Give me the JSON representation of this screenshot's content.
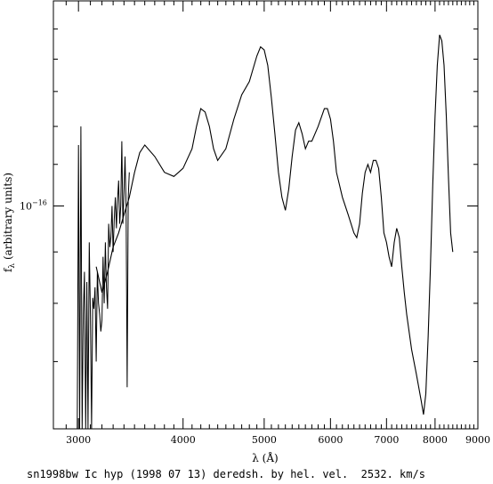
{
  "chart_data": {
    "type": "line",
    "x_scale": "log",
    "y_scale": "log",
    "xlim": [
      2800,
      9000
    ],
    "ylim": [
      6e-17,
      1.6e-16
    ],
    "x_ticks": [
      3000,
      4000,
      5000,
      6000,
      7000,
      8000,
      9000
    ],
    "x_tick_labels": [
      "3000",
      "4000",
      "5000",
      "6000",
      "7000",
      "8000",
      "9000"
    ],
    "y_tick_label_value": 1e-16,
    "y_tick_label_base": "10",
    "y_tick_label_exp": "−16",
    "xlabel": "λ (Å)",
    "ylabel_main": "f",
    "ylabel_sub": "λ",
    "ylabel_rest": " (arbitrary units)",
    "grid": false,
    "title": "",
    "series": [
      {
        "name": "",
        "color": "#000000",
        "x": [
          3150,
          3200,
          3250,
          3300,
          3350,
          3400,
          3450,
          3500,
          3550,
          3600,
          3700,
          3800,
          3900,
          4000,
          4100,
          4150,
          4200,
          4250,
          4300,
          4350,
          4400,
          4500,
          4600,
          4700,
          4800,
          4900,
          4950,
          5000,
          5050,
          5100,
          5150,
          5200,
          5250,
          5300,
          5350,
          5400,
          5450,
          5500,
          5550,
          5600,
          5650,
          5700,
          5800,
          5900,
          5950,
          6000,
          6050,
          6100,
          6200,
          6300,
          6400,
          6450,
          6500,
          6550,
          6600,
          6650,
          6700,
          6750,
          6800,
          6850,
          6900,
          6950,
          7000,
          7050,
          7100,
          7150,
          7200,
          7250,
          7300,
          7350,
          7400,
          7500,
          7600,
          7700,
          7750,
          7800,
          7850,
          7900,
          7950,
          8000,
          8050,
          8100,
          8150,
          8200,
          8250,
          8300,
          8350,
          8400
        ],
        "y": [
          8.7e-17,
          8.2e-17,
          8.6e-17,
          9.1e-17,
          9.4e-17,
          9.8e-17,
          1.02e-16,
          1.08e-16,
          1.13e-16,
          1.15e-16,
          1.12e-16,
          1.08e-16,
          1.07e-16,
          1.09e-16,
          1.14e-16,
          1.2e-16,
          1.25e-16,
          1.24e-16,
          1.2e-16,
          1.14e-16,
          1.11e-16,
          1.14e-16,
          1.22e-16,
          1.29e-16,
          1.33e-16,
          1.41e-16,
          1.44e-16,
          1.43e-16,
          1.38e-16,
          1.28e-16,
          1.18e-16,
          1.08e-16,
          1.02e-16,
          9.9e-17,
          1.04e-16,
          1.12e-16,
          1.19e-16,
          1.21e-16,
          1.18e-16,
          1.14e-16,
          1.16e-16,
          1.16e-16,
          1.2e-16,
          1.25e-16,
          1.25e-16,
          1.22e-16,
          1.16e-16,
          1.08e-16,
          1.02e-16,
          9.8e-17,
          9.4e-17,
          9.3e-17,
          9.6e-17,
          1.03e-16,
          1.08e-16,
          1.1e-16,
          1.08e-16,
          1.11e-16,
          1.11e-16,
          1.09e-16,
          1.02e-16,
          9.4e-17,
          9.2e-17,
          8.9e-17,
          8.7e-17,
          9.2e-17,
          9.5e-17,
          9.3e-17,
          8.7e-17,
          8.2e-17,
          7.8e-17,
          7.2e-17,
          6.8e-17,
          6.4e-17,
          6.2e-17,
          6.5e-17,
          7.4e-17,
          8.7e-17,
          1.05e-16,
          1.23e-16,
          1.38e-16,
          1.48e-16,
          1.46e-16,
          1.38e-16,
          1.23e-16,
          1.07e-16,
          9.4e-17,
          9e-17
        ]
      }
    ],
    "noise_segment": {
      "x": [
        2990,
        3000,
        3010,
        3020,
        3030,
        3040,
        3050,
        3060,
        3070,
        3080,
        3090,
        3100,
        3110,
        3120,
        3130,
        3140,
        3150,
        3160,
        3170,
        3180,
        3190,
        3200,
        3210,
        3220,
        3230,
        3240,
        3250,
        3260,
        3270,
        3280,
        3290,
        3300,
        3310,
        3320,
        3330,
        3340,
        3350,
        3360,
        3370,
        3380,
        3390,
        3400,
        3410,
        3420,
        3430,
        3440,
        3450
      ],
      "y": [
        6e-17,
        1.15e-16,
        6e-17,
        1.2e-16,
        6e-17,
        7.8e-17,
        8.6e-17,
        6e-17,
        8.4e-17,
        6e-17,
        9.2e-17,
        7.8e-17,
        6e-17,
        8.1e-17,
        7.9e-17,
        8.3e-17,
        7e-17,
        8.6e-17,
        8e-17,
        7.8e-17,
        7.5e-17,
        7.7e-17,
        8.9e-17,
        8e-17,
        9.2e-17,
        8.3e-17,
        7.9e-17,
        9.6e-17,
        9.1e-17,
        9.3e-17,
        1e-16,
        9e-17,
        9.7e-17,
        1.02e-16,
        9.5e-17,
        1.01e-16,
        1.06e-16,
        9.6e-17,
        1e-16,
        1.16e-16,
        9.6e-17,
        1.03e-16,
        1.12e-16,
        1e-16,
        6.6e-17,
        1.02e-16,
        1.08e-16
      ]
    }
  },
  "caption": {
    "text": "sn1998bw Ic hyp (1998 07 13) deredsh. by hel. vel.  2532. km/s"
  }
}
